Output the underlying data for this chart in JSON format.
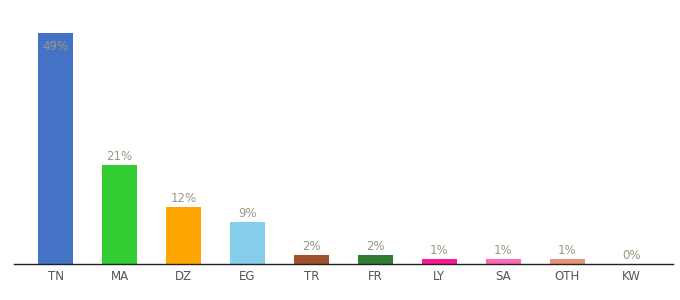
{
  "categories": [
    "TN",
    "MA",
    "DZ",
    "EG",
    "TR",
    "FR",
    "LY",
    "SA",
    "OTH",
    "KW"
  ],
  "values": [
    49,
    21,
    12,
    9,
    2,
    2,
    1,
    1,
    1,
    0
  ],
  "bar_colors": [
    "#4472C4",
    "#33CC33",
    "#FFA500",
    "#87CEEB",
    "#A0522D",
    "#2E7D32",
    "#FF1493",
    "#FF69B4",
    "#E8967A",
    "#FF69B4"
  ],
  "labels": [
    "49%",
    "21%",
    "12%",
    "9%",
    "2%",
    "2%",
    "1%",
    "1%",
    "1%",
    "0%"
  ],
  "ylim": [
    0,
    54
  ],
  "background_color": "#ffffff",
  "label_color": "#999988",
  "label_fontsize": 8.5,
  "tick_fontsize": 8.5,
  "bar_width": 0.55,
  "figsize": [
    6.8,
    3.0
  ],
  "dpi": 100
}
